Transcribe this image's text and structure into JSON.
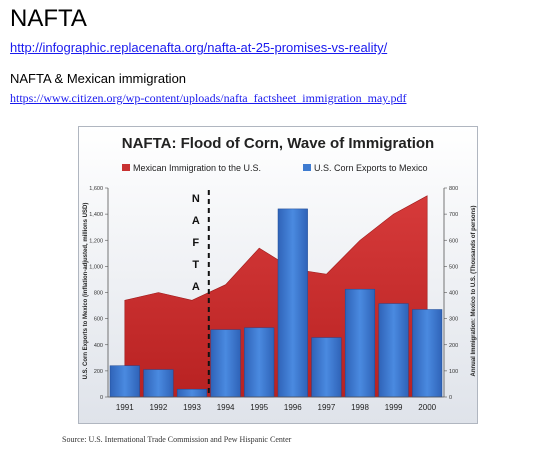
{
  "header": {
    "title": "NAFTA",
    "link1": "http://infographic.replacenafta.org/nafta-at-25-promises-vs-reality/",
    "subtitle": "NAFTA & Mexican immigration",
    "link2": "https://www.citizen.org/wp-content/uploads/nafta_factsheet_immigration_may.pdf"
  },
  "source": "Source: U.S. International Trade Commission and Pew Hispanic Center",
  "chart_data": {
    "type": "bar",
    "title": "NAFTA: Flood of Corn, Wave of Immigration",
    "categories": [
      "1991",
      "1992",
      "1993",
      "1994",
      "1995",
      "1996",
      "1997",
      "1998",
      "1999",
      "2000"
    ],
    "series": [
      {
        "name": "Mexican Immigration to the U.S.",
        "type": "area",
        "axis": "right",
        "color": "#c83232",
        "values": [
          370,
          400,
          370,
          430,
          570,
          490,
          470,
          600,
          700,
          770
        ]
      },
      {
        "name": "U.S. Corn Exports to Mexico",
        "type": "bar",
        "axis": "left",
        "color": "#3e7bd0",
        "values": [
          240,
          210,
          60,
          515,
          530,
          1440,
          455,
          825,
          715,
          670
        ]
      }
    ],
    "ylabel_left": "U.S. Corn Exports to Mexico (inflation-adjusted, millions USD)",
    "ylabel_right": "Annual Immigration: Mexico to U.S. (Thousands of persons)",
    "ylim_left": [
      0,
      1600
    ],
    "ylim_right": [
      0,
      800
    ],
    "yticks_left": [
      "0",
      "200",
      "400",
      "600",
      "800",
      "1,000",
      "1,200",
      "1,400",
      "1,600"
    ],
    "yticks_right": [
      "0",
      "100",
      "200",
      "300",
      "400",
      "500",
      "600",
      "700",
      "800"
    ],
    "annotation": {
      "letters": [
        "N",
        "A",
        "F",
        "T",
        "A"
      ]
    },
    "legend_position": "top",
    "grid": false
  }
}
